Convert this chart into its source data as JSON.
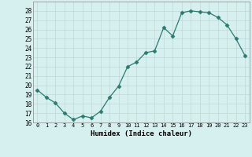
{
  "x": [
    0,
    1,
    2,
    3,
    4,
    5,
    6,
    7,
    8,
    9,
    10,
    11,
    12,
    13,
    14,
    15,
    16,
    17,
    18,
    19,
    20,
    21,
    22,
    23
  ],
  "y": [
    19.5,
    18.7,
    18.1,
    17.0,
    16.3,
    16.7,
    16.5,
    17.2,
    18.7,
    19.9,
    22.0,
    22.5,
    23.5,
    23.7,
    26.2,
    25.3,
    27.8,
    28.0,
    27.9,
    27.8,
    27.3,
    26.5,
    25.0,
    23.2
  ],
  "line_color": "#2d7a6e",
  "marker": "D",
  "marker_size": 2.5,
  "bg_color": "#d6f0ef",
  "grid_color": "#c0d8d4",
  "xlabel": "Humidex (Indice chaleur)",
  "ylim": [
    16,
    29
  ],
  "yticks": [
    16,
    17,
    18,
    19,
    20,
    21,
    22,
    23,
    24,
    25,
    26,
    27,
    28
  ],
  "xticks": [
    0,
    1,
    2,
    3,
    4,
    5,
    6,
    7,
    8,
    9,
    10,
    11,
    12,
    13,
    14,
    15,
    16,
    17,
    18,
    19,
    20,
    21,
    22,
    23
  ],
  "xlim": [
    -0.5,
    23.5
  ]
}
